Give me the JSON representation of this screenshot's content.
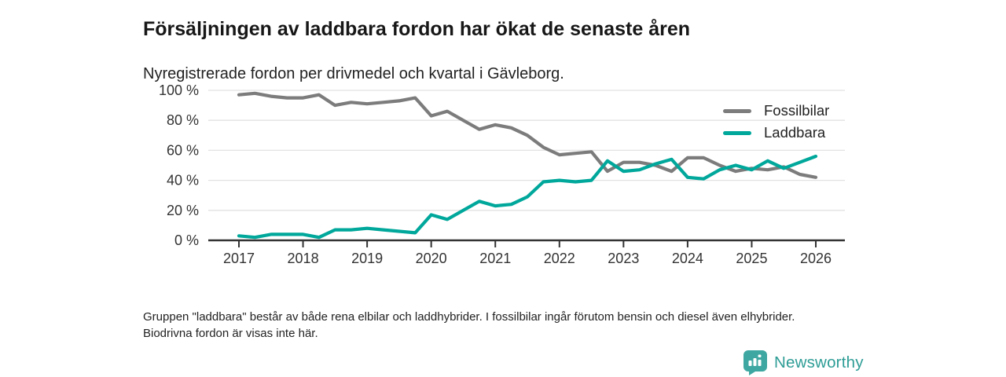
{
  "header": {
    "title": "Försäljningen av laddbara fordon har ökat de senaste åren",
    "subtitle": "Nyregistrerade fordon per drivmedel och kvartal i Gävleborg."
  },
  "chart_data": {
    "type": "line",
    "title": "Försäljningen av laddbara fordon har ökat de senaste åren",
    "subtitle": "Nyregistrerade fordon per drivmedel och kvartal i Gävleborg.",
    "categories": [
      "2017 Q1",
      "2017 Q2",
      "2017 Q3",
      "2017 Q4",
      "2018 Q1",
      "2018 Q2",
      "2018 Q3",
      "2018 Q4",
      "2019 Q1",
      "2019 Q2",
      "2019 Q3",
      "2019 Q4",
      "2020 Q1",
      "2020 Q2",
      "2020 Q3",
      "2020 Q4",
      "2021 Q1",
      "2021 Q2",
      "2021 Q3",
      "2021 Q4",
      "2022 Q1",
      "2022 Q2",
      "2022 Q3",
      "2022 Q4",
      "2023 Q1",
      "2023 Q2",
      "2023 Q3",
      "2023 Q4",
      "2024 Q1",
      "2024 Q2",
      "2024 Q3",
      "2024 Q4",
      "2025 Q1",
      "2025 Q2",
      "2025 Q3",
      "2025 Q4",
      "2026 Q1"
    ],
    "series": [
      {
        "name": "Fossilbilar",
        "color": "#7c7c7c",
        "values": [
          97,
          98,
          96,
          95,
          95,
          97,
          90,
          92,
          91,
          92,
          93,
          95,
          83,
          86,
          80,
          74,
          77,
          75,
          70,
          62,
          57,
          58,
          59,
          46,
          52,
          52,
          50,
          46,
          55,
          55,
          50,
          46,
          48,
          47,
          49,
          44,
          42
        ]
      },
      {
        "name": "Laddbara",
        "color": "#00a79b",
        "values": [
          3,
          2,
          4,
          4,
          4,
          2,
          7,
          7,
          8,
          7,
          6,
          5,
          17,
          14,
          20,
          26,
          23,
          24,
          29,
          39,
          40,
          39,
          40,
          53,
          46,
          47,
          51,
          54,
          42,
          41,
          47,
          50,
          47,
          53,
          48,
          52,
          56
        ]
      }
    ],
    "x_tick_labels": [
      "2017",
      "2018",
      "2019",
      "2020",
      "2021",
      "2022",
      "2023",
      "2024",
      "2025",
      "2026"
    ],
    "y_ticks": [
      0,
      20,
      40,
      60,
      80,
      100
    ],
    "y_tick_suffix": " %",
    "ylim": [
      0,
      100
    ],
    "xlabel": "",
    "ylabel": "",
    "grid": true,
    "legend_position": "top-right"
  },
  "footnote": {
    "text": "Gruppen \"laddbara\" består av både rena elbilar och laddhybrider. I fossilbilar ingår förutom bensin och diesel även elhybrider. Biodrivna fordon är visas inte här."
  },
  "branding": {
    "name": "Newsworthy",
    "icon": "bar-chart-bubble-icon",
    "icon_color": "#3fa7a1",
    "text_color": "#2e9d96"
  }
}
